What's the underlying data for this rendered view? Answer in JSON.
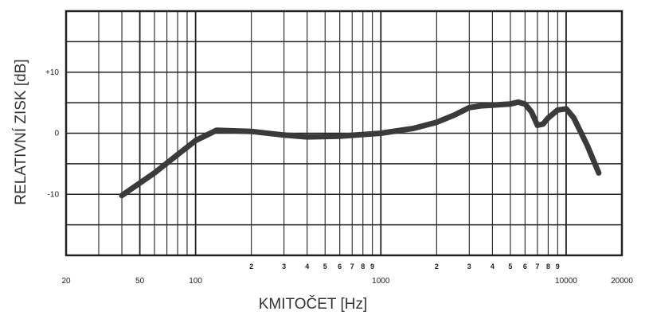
{
  "chart_data": {
    "type": "line",
    "title": "",
    "xlabel": "KMITOČET [Hz]",
    "ylabel": "RELATIVNÍ ZISK [dB]",
    "x_scale": "log",
    "xlim": [
      20,
      20000
    ],
    "ylim": [
      -20,
      20
    ],
    "grid": true,
    "x_major_ticks": [
      {
        "value": 20,
        "label": "20"
      },
      {
        "value": 50,
        "label": "50"
      },
      {
        "value": 100,
        "label": "100"
      },
      {
        "value": 1000,
        "label": "1000"
      },
      {
        "value": 10000,
        "label": "10000"
      },
      {
        "value": 20000,
        "label": "20000"
      }
    ],
    "x_minor_ticks": [
      {
        "value": 200,
        "label": "2"
      },
      {
        "value": 300,
        "label": "3"
      },
      {
        "value": 400,
        "label": "4"
      },
      {
        "value": 500,
        "label": "5"
      },
      {
        "value": 600,
        "label": "6"
      },
      {
        "value": 700,
        "label": "7"
      },
      {
        "value": 800,
        "label": "8"
      },
      {
        "value": 900,
        "label": "9"
      },
      {
        "value": 2000,
        "label": "2"
      },
      {
        "value": 3000,
        "label": "3"
      },
      {
        "value": 4000,
        "label": "4"
      },
      {
        "value": 5000,
        "label": "5"
      },
      {
        "value": 6000,
        "label": "6"
      },
      {
        "value": 7000,
        "label": "7"
      },
      {
        "value": 8000,
        "label": "8"
      },
      {
        "value": 9000,
        "label": "9"
      }
    ],
    "y_ticks": [
      {
        "value": 10,
        "label": "+10"
      },
      {
        "value": 0,
        "label": "0"
      },
      {
        "value": -10,
        "label": "-10"
      }
    ],
    "series": [
      {
        "x": [
          40,
          60,
          80,
          100,
          130,
          200,
          300,
          400,
          600,
          1000,
          1500,
          2000,
          2500,
          3000,
          3500,
          4000,
          5000,
          5500,
          6000,
          6500,
          7000,
          7500,
          8000,
          9000,
          10000,
          11000,
          13000,
          15000
        ],
        "y": [
          -10.2,
          -6.5,
          -3.5,
          -1.2,
          0.5,
          0.3,
          -0.3,
          -0.6,
          -0.5,
          0,
          0.8,
          1.8,
          3.0,
          4.2,
          4.5,
          4.6,
          4.8,
          5.1,
          4.8,
          3.5,
          1.3,
          1.5,
          2.5,
          3.8,
          4.0,
          2.5,
          -2.0,
          -6.5
        ]
      }
    ]
  }
}
